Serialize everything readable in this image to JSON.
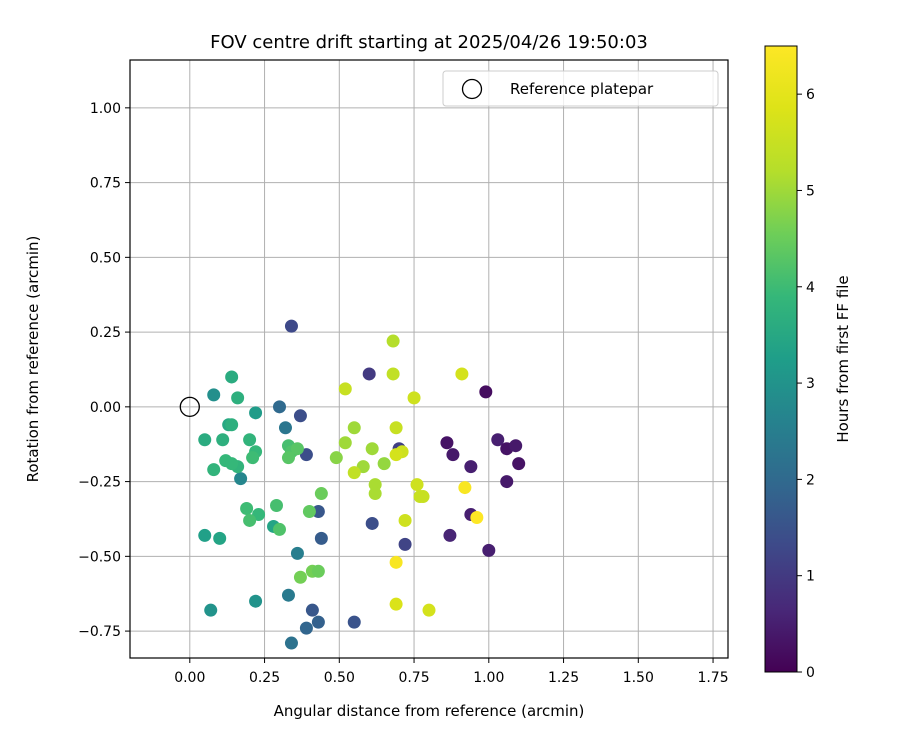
{
  "chart_data": {
    "type": "scatter",
    "title": "FOV centre drift starting at 2025/04/26 19:50:03",
    "xlabel": "Angular distance from reference (arcmin)",
    "ylabel": "Rotation from reference (arcmin)",
    "xlim": [
      -0.2,
      1.8
    ],
    "ylim": [
      -0.84,
      1.16
    ],
    "xticks": [
      0.0,
      0.25,
      0.5,
      0.75,
      1.0,
      1.25,
      1.5,
      1.75
    ],
    "xtick_labels": [
      "0.00",
      "0.25",
      "0.50",
      "0.75",
      "1.00",
      "1.25",
      "1.50",
      "1.75"
    ],
    "yticks": [
      -0.75,
      -0.5,
      -0.25,
      0.0,
      0.25,
      0.5,
      0.75,
      1.0
    ],
    "ytick_labels": [
      "−0.75",
      "−0.50",
      "−0.25",
      "0.00",
      "0.25",
      "0.50",
      "0.75",
      "1.00"
    ],
    "grid": true,
    "legend": {
      "position": "top-right",
      "entries": [
        {
          "label": "Reference platepar",
          "marker": "open-circle"
        }
      ]
    },
    "reference_point": {
      "x": 0.0,
      "y": 0.0,
      "label": "Reference platepar"
    },
    "colorbar": {
      "label": "Hours from first FF file",
      "min": 0,
      "max": 6.5,
      "ticks": [
        0,
        1,
        2,
        3,
        4,
        5,
        6
      ],
      "colormap": "viridis"
    },
    "series": [
      {
        "points": [
          {
            "x": 0.99,
            "y": 0.05,
            "c": 0.2
          },
          {
            "x": 0.86,
            "y": -0.12,
            "c": 0.3
          },
          {
            "x": 0.88,
            "y": -0.16,
            "c": 0.4
          },
          {
            "x": 0.94,
            "y": -0.2,
            "c": 0.5
          },
          {
            "x": 1.03,
            "y": -0.11,
            "c": 0.5
          },
          {
            "x": 1.06,
            "y": -0.14,
            "c": 0.3
          },
          {
            "x": 1.09,
            "y": -0.13,
            "c": 0.4
          },
          {
            "x": 1.1,
            "y": -0.19,
            "c": 0.3
          },
          {
            "x": 1.06,
            "y": -0.25,
            "c": 0.4
          },
          {
            "x": 0.94,
            "y": -0.36,
            "c": 0.5
          },
          {
            "x": 0.87,
            "y": -0.43,
            "c": 0.6
          },
          {
            "x": 1.0,
            "y": -0.48,
            "c": 0.5
          },
          {
            "x": 0.6,
            "y": 0.11,
            "c": 1.0
          },
          {
            "x": 0.7,
            "y": -0.14,
            "c": 1.1
          },
          {
            "x": 0.72,
            "y": -0.46,
            "c": 1.2
          },
          {
            "x": 0.61,
            "y": -0.39,
            "c": 1.4
          },
          {
            "x": 0.55,
            "y": -0.72,
            "c": 1.5
          },
          {
            "x": 0.34,
            "y": 0.27,
            "c": 1.3
          },
          {
            "x": 0.37,
            "y": -0.03,
            "c": 1.4
          },
          {
            "x": 0.39,
            "y": -0.16,
            "c": 1.4
          },
          {
            "x": 0.43,
            "y": -0.35,
            "c": 1.6
          },
          {
            "x": 0.44,
            "y": -0.44,
            "c": 1.7
          },
          {
            "x": 0.41,
            "y": -0.68,
            "c": 1.6
          },
          {
            "x": 0.43,
            "y": -0.72,
            "c": 1.8
          },
          {
            "x": 0.39,
            "y": -0.74,
            "c": 1.9
          },
          {
            "x": 0.34,
            "y": -0.79,
            "c": 2.2
          },
          {
            "x": 0.33,
            "y": -0.63,
            "c": 2.4
          },
          {
            "x": 0.36,
            "y": -0.49,
            "c": 2.5
          },
          {
            "x": 0.3,
            "y": 0.0,
            "c": 2.0
          },
          {
            "x": 0.32,
            "y": -0.07,
            "c": 2.3
          },
          {
            "x": 0.17,
            "y": -0.24,
            "c": 2.7
          },
          {
            "x": 0.08,
            "y": 0.04,
            "c": 2.9
          },
          {
            "x": 0.22,
            "y": -0.65,
            "c": 3.0
          },
          {
            "x": 0.07,
            "y": -0.68,
            "c": 3.0
          },
          {
            "x": 0.05,
            "y": -0.43,
            "c": 3.3
          },
          {
            "x": 0.1,
            "y": -0.44,
            "c": 3.4
          },
          {
            "x": 0.28,
            "y": -0.4,
            "c": 3.4
          },
          {
            "x": 0.22,
            "y": -0.02,
            "c": 3.2
          },
          {
            "x": 0.14,
            "y": 0.1,
            "c": 3.6
          },
          {
            "x": 0.13,
            "y": -0.06,
            "c": 3.5
          },
          {
            "x": 0.14,
            "y": -0.06,
            "c": 3.7
          },
          {
            "x": 0.05,
            "y": -0.11,
            "c": 3.6
          },
          {
            "x": 0.11,
            "y": -0.11,
            "c": 3.7
          },
          {
            "x": 0.16,
            "y": 0.03,
            "c": 3.7
          },
          {
            "x": 0.08,
            "y": -0.21,
            "c": 3.8
          },
          {
            "x": 0.12,
            "y": -0.18,
            "c": 3.9
          },
          {
            "x": 0.16,
            "y": -0.2,
            "c": 3.8
          },
          {
            "x": 0.2,
            "y": -0.11,
            "c": 3.8
          },
          {
            "x": 0.22,
            "y": -0.15,
            "c": 3.9
          },
          {
            "x": 0.14,
            "y": -0.19,
            "c": 3.9
          },
          {
            "x": 0.21,
            "y": -0.17,
            "c": 4.0
          },
          {
            "x": 0.19,
            "y": -0.34,
            "c": 4.0
          },
          {
            "x": 0.23,
            "y": -0.36,
            "c": 3.9
          },
          {
            "x": 0.2,
            "y": -0.38,
            "c": 4.1
          },
          {
            "x": 0.29,
            "y": -0.33,
            "c": 4.1
          },
          {
            "x": 0.3,
            "y": -0.41,
            "c": 4.2
          },
          {
            "x": 0.33,
            "y": -0.13,
            "c": 4.1
          },
          {
            "x": 0.34,
            "y": -0.15,
            "c": 4.2
          },
          {
            "x": 0.36,
            "y": -0.14,
            "c": 4.3
          },
          {
            "x": 0.33,
            "y": -0.17,
            "c": 4.3
          },
          {
            "x": 0.4,
            "y": -0.35,
            "c": 4.4
          },
          {
            "x": 0.44,
            "y": -0.29,
            "c": 4.5
          },
          {
            "x": 0.41,
            "y": -0.55,
            "c": 4.6
          },
          {
            "x": 0.43,
            "y": -0.55,
            "c": 4.5
          },
          {
            "x": 0.37,
            "y": -0.57,
            "c": 4.6
          },
          {
            "x": 0.49,
            "y": -0.17,
            "c": 4.8
          },
          {
            "x": 0.52,
            "y": -0.12,
            "c": 5.0
          },
          {
            "x": 0.55,
            "y": -0.07,
            "c": 5.0
          },
          {
            "x": 0.58,
            "y": -0.2,
            "c": 5.0
          },
          {
            "x": 0.61,
            "y": -0.14,
            "c": 5.0
          },
          {
            "x": 0.65,
            "y": -0.19,
            "c": 4.9
          },
          {
            "x": 0.62,
            "y": -0.26,
            "c": 5.1
          },
          {
            "x": 0.62,
            "y": -0.29,
            "c": 5.1
          },
          {
            "x": 0.55,
            "y": -0.22,
            "c": 5.4
          },
          {
            "x": 0.52,
            "y": 0.06,
            "c": 5.5
          },
          {
            "x": 0.68,
            "y": 0.22,
            "c": 5.2
          },
          {
            "x": 0.68,
            "y": 0.11,
            "c": 5.4
          },
          {
            "x": 0.69,
            "y": -0.07,
            "c": 5.5
          },
          {
            "x": 0.71,
            "y": -0.15,
            "c": 5.6
          },
          {
            "x": 0.69,
            "y": -0.16,
            "c": 5.7
          },
          {
            "x": 0.75,
            "y": 0.03,
            "c": 5.6
          },
          {
            "x": 0.76,
            "y": -0.26,
            "c": 5.6
          },
          {
            "x": 0.77,
            "y": -0.3,
            "c": 5.5
          },
          {
            "x": 0.78,
            "y": -0.3,
            "c": 5.5
          },
          {
            "x": 0.72,
            "y": -0.38,
            "c": 5.6
          },
          {
            "x": 0.69,
            "y": -0.66,
            "c": 5.8
          },
          {
            "x": 0.8,
            "y": -0.68,
            "c": 5.7
          },
          {
            "x": 0.91,
            "y": 0.11,
            "c": 5.7
          },
          {
            "x": 0.69,
            "y": -0.52,
            "c": 6.4
          },
          {
            "x": 0.92,
            "y": -0.27,
            "c": 6.4
          },
          {
            "x": 0.96,
            "y": -0.37,
            "c": 6.5
          }
        ]
      }
    ]
  }
}
